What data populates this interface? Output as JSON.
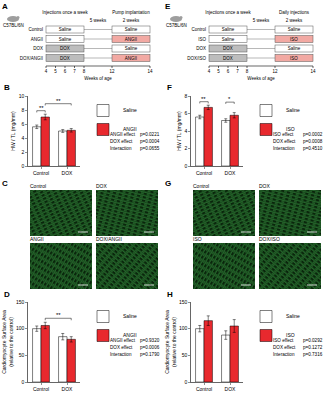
{
  "chart_data": [
    {
      "type": "bar",
      "panel": "B",
      "ylabel": "HW / TL (mg/mm)",
      "categories": [
        "Control",
        "DOX"
      ],
      "series": [
        {
          "name": "Saline",
          "color": "#ffffff",
          "values": [
            5.6,
            5.0
          ],
          "errors": [
            0.25,
            0.2
          ]
        },
        {
          "name": "ANGII",
          "color": "#e8292e",
          "values": [
            7.0,
            5.1
          ],
          "errors": [
            0.4,
            0.25
          ]
        }
      ],
      "ylim": [
        0,
        10
      ],
      "yticks": [
        0,
        2,
        4,
        6,
        8,
        10
      ],
      "grid": false,
      "stats": [
        {
          "label": "ANGII effect",
          "p": "p=0.0221"
        },
        {
          "label": "DOX effect",
          "p": "p=0.0004"
        },
        {
          "label": "Interaction",
          "p": "p=0.0655"
        }
      ],
      "significance": [
        {
          "from": [
            "Control",
            "Saline"
          ],
          "to": [
            "Control",
            "ANGII"
          ],
          "label": "**"
        },
        {
          "from": [
            "Control",
            "ANGII"
          ],
          "to": [
            "DOX",
            "ANGII"
          ],
          "label": "**"
        }
      ]
    },
    {
      "type": "bar",
      "panel": "D",
      "ylabel": [
        "Cardiomyocyte Surface Area",
        "(relative to the control)"
      ],
      "categories": [
        "Control",
        "DOX"
      ],
      "series": [
        {
          "name": "Saline",
          "color": "#ffffff",
          "values": [
            100,
            85
          ],
          "errors": [
            5,
            6
          ]
        },
        {
          "name": "ANGII",
          "color": "#e8292e",
          "values": [
            106,
            80
          ],
          "errors": [
            6,
            5
          ]
        }
      ],
      "ylim": [
        0,
        150
      ],
      "yticks": [
        0,
        50,
        100,
        150
      ],
      "grid": false,
      "stats": [
        {
          "label": "ANGII effect",
          "p": "p=0.9320"
        },
        {
          "label": "DOX effect",
          "p": "p=0.0006"
        },
        {
          "label": "Interaction",
          "p": "p=0.1790"
        }
      ],
      "significance": [
        {
          "from": [
            "Control",
            "ANGII"
          ],
          "to": [
            "DOX",
            "ANGII"
          ],
          "label": "**"
        }
      ]
    },
    {
      "type": "bar",
      "panel": "F",
      "ylabel": "HW / TL (mg/mm)",
      "categories": [
        "Control",
        "DOX"
      ],
      "series": [
        {
          "name": "Saline",
          "color": "#ffffff",
          "values": [
            5.6,
            5.2
          ],
          "errors": [
            0.2,
            0.2
          ]
        },
        {
          "name": "ISO",
          "color": "#e8292e",
          "values": [
            6.7,
            5.8
          ],
          "errors": [
            0.25,
            0.3
          ]
        }
      ],
      "ylim": [
        0,
        8
      ],
      "yticks": [
        0,
        2,
        4,
        6,
        8
      ],
      "grid": false,
      "stats": [
        {
          "label": "ISO effect",
          "p": "p=0.0002"
        },
        {
          "label": "DOX effect",
          "p": "p=0.0008"
        },
        {
          "label": "Interaction",
          "p": "p=0.4510"
        }
      ],
      "significance": [
        {
          "from": [
            "Control",
            "Saline"
          ],
          "to": [
            "Control",
            "ISO"
          ],
          "label": "**"
        },
        {
          "from": [
            "DOX",
            "Saline"
          ],
          "to": [
            "DOX",
            "ISO"
          ],
          "label": "*"
        }
      ]
    },
    {
      "type": "bar",
      "panel": "H",
      "ylabel": [
        "Cardiomyocyte Surface Area",
        "(relative to the control)"
      ],
      "categories": [
        "Control",
        "DOX"
      ],
      "series": [
        {
          "name": "Saline",
          "color": "#ffffff",
          "values": [
            100,
            88
          ],
          "errors": [
            6,
            8
          ]
        },
        {
          "name": "ISO",
          "color": "#e8292e",
          "values": [
            115,
            105
          ],
          "errors": [
            9,
            12
          ]
        }
      ],
      "ylim": [
        0,
        150
      ],
      "yticks": [
        0,
        50,
        100,
        150
      ],
      "grid": false,
      "stats": [
        {
          "label": "ISO effect",
          "p": "p=0.0292"
        },
        {
          "label": "DOX effect",
          "p": "p=0.1272"
        },
        {
          "label": "Interaction",
          "p": "p=0.7316"
        }
      ],
      "significance": []
    }
  ],
  "diagrams": [
    {
      "panel": "A",
      "strain": "C57BL/6N",
      "phase1_label": "Injections once a week",
      "gap_label": "5 weeks",
      "phase2_label": "Pump implantation",
      "phase2_duration": "2 weeks",
      "phase1_weeks": [
        4,
        8
      ],
      "phase2_weeks": [
        12,
        14
      ],
      "rows": [
        {
          "group": "Control",
          "phase1": "Saline",
          "phase2": "Saline"
        },
        {
          "group": "ANGII",
          "phase1": "Saline",
          "phase2": "ANGII"
        },
        {
          "group": "DOX",
          "phase1": "DOX",
          "phase2": "Saline"
        },
        {
          "group": "DOX/ANGII",
          "phase1": "DOX",
          "phase2": "ANGII"
        }
      ],
      "axis_label": "Weeks of age",
      "axis_ticks": [
        4,
        5,
        6,
        7,
        8,
        12,
        14
      ]
    },
    {
      "panel": "E",
      "strain": "C57BL/6N",
      "phase1_label": "Injections once a week",
      "gap_label": "5 weeks",
      "phase2_label": "Daily injections",
      "phase2_duration": "2 weeks",
      "phase1_weeks": [
        4,
        8
      ],
      "phase2_weeks": [
        12,
        14
      ],
      "rows": [
        {
          "group": "Control",
          "phase1": "Saline",
          "phase2": "Saline"
        },
        {
          "group": "ISO",
          "phase1": "Saline",
          "phase2": "ISO"
        },
        {
          "group": "DOX",
          "phase1": "DOX",
          "phase2": "Saline"
        },
        {
          "group": "DOX/ISO",
          "phase1": "DOX",
          "phase2": "ISO"
        }
      ],
      "axis_label": "Weeks of age",
      "axis_ticks": [
        4,
        5,
        6,
        7,
        8,
        12,
        14
      ]
    }
  ],
  "images": [
    {
      "panel": "C",
      "labels": [
        "Control",
        "DOX",
        "ANGII",
        "DOX/ANGII"
      ]
    },
    {
      "panel": "G",
      "labels": [
        "Control",
        "DOX",
        "ISO",
        "DOX/ISO"
      ]
    }
  ]
}
